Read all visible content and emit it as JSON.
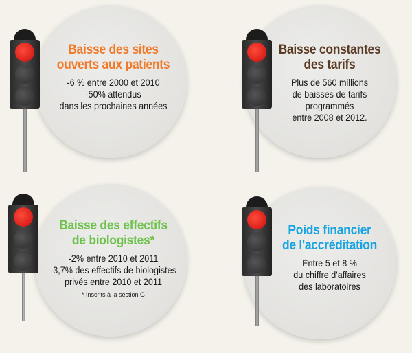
{
  "colors": {
    "orange": "#f07a2a",
    "brown": "#5b3a24",
    "green": "#6cc24a",
    "blue": "#18a3e2",
    "red_light": "#e8201a"
  },
  "panels": [
    {
      "title": [
        "Baisse des sites",
        "ouverts aux patients"
      ],
      "lines": [
        "-6 % entre 2000 et 2010",
        "-50% attendus",
        "dans les prochaines années"
      ],
      "icon": "traffic-light-red"
    },
    {
      "title": [
        "Baisse constantes",
        "des tarifs"
      ],
      "lines": [
        "Plus de 560 millions",
        "de baisses de tarifs",
        "programmés",
        "entre 2008 et 2012."
      ],
      "icon": "traffic-light-red"
    },
    {
      "title": [
        "Baisse des effectifs",
        "de biologistes*"
      ],
      "lines": [
        "-2% entre 2010 et 2011",
        "-3,7% des effectifs de biologistes",
        "privés entre 2010 et 2011"
      ],
      "note": "* Inscrits à la section G",
      "icon": "traffic-light-red"
    },
    {
      "title": [
        "Poids financier",
        "de l'accréditation"
      ],
      "lines": [
        "Entre 5 et 8 %",
        "du chiffre d'affaires",
        "des laboratoires"
      ],
      "icon": "traffic-light-red"
    }
  ]
}
